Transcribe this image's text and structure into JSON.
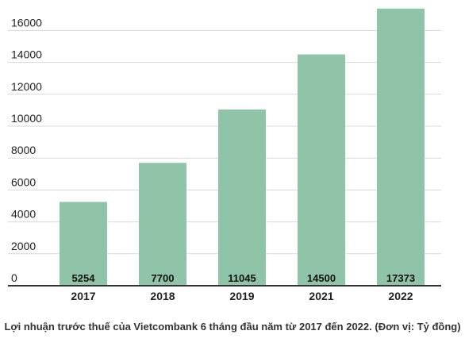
{
  "chart_data": {
    "type": "bar",
    "categories": [
      "2017",
      "2018",
      "2019",
      "2021",
      "2022"
    ],
    "values": [
      5254,
      7700,
      11045,
      14500,
      17373
    ],
    "data_labels": [
      "5254",
      "7700",
      "11045",
      "14500",
      "17373"
    ],
    "y_ticks": [
      "0",
      "2000",
      "4000",
      "6000",
      "8000",
      "10000",
      "12000",
      "14000",
      "16000"
    ],
    "ylim": [
      0,
      17500
    ],
    "grid": true,
    "legend": "none",
    "bar_color": "#8fc4a9",
    "caption": "Lợi nhuận trước thuế của Vietcombank 6 tháng đầu năm từ 2017 đến 2022. (Đơn vị: Tỷ đồng)"
  }
}
